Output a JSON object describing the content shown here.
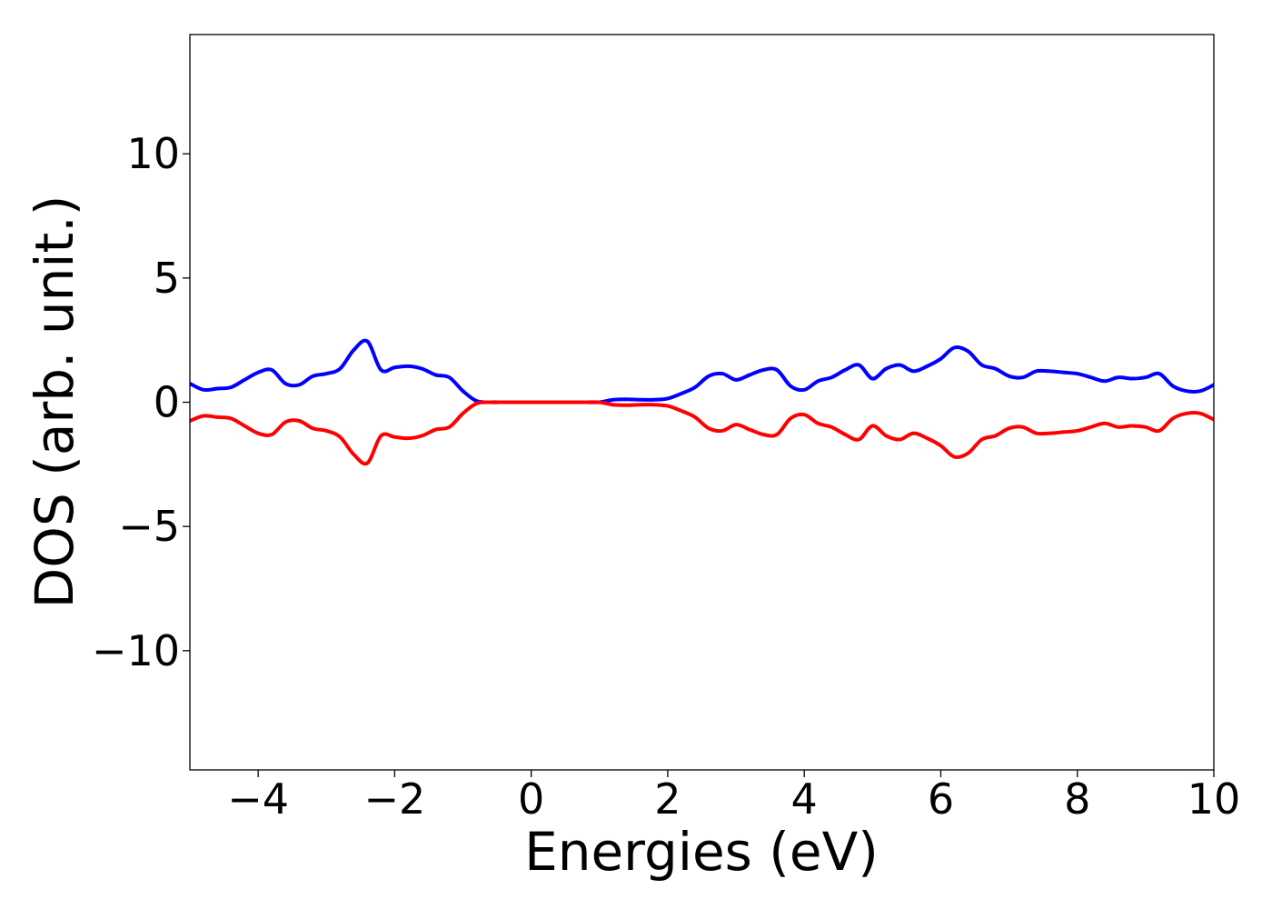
{
  "chart_data": {
    "type": "line",
    "title": "",
    "xlabel": "Energies (eV)",
    "ylabel": "DOS (arb. unit.)",
    "xlim": [
      -5,
      10
    ],
    "ylim": [
      -14.8,
      14.8
    ],
    "xticks": [
      -4,
      -2,
      0,
      2,
      4,
      6,
      8,
      10
    ],
    "xtick_labels": [
      "−4",
      "−2",
      "0",
      "2",
      "4",
      "6",
      "8",
      "10"
    ],
    "yticks": [
      -10,
      -5,
      0,
      5,
      10
    ],
    "ytick_labels": [
      "−10",
      "−5",
      "0",
      "5",
      "10"
    ],
    "grid": false,
    "legend": "none",
    "series": [
      {
        "color": "#0000ff",
        "x": [
          -5.0,
          -4.8,
          -4.6,
          -4.4,
          -4.2,
          -4.0,
          -3.8,
          -3.6,
          -3.4,
          -3.2,
          -3.0,
          -2.8,
          -2.6,
          -2.4,
          -2.2,
          -2.0,
          -1.8,
          -1.6,
          -1.4,
          -1.2,
          -1.0,
          -0.8,
          -0.6,
          -0.4,
          -0.2,
          0.0,
          0.2,
          0.4,
          0.6,
          0.8,
          1.0,
          1.2,
          1.4,
          1.6,
          1.8,
          2.0,
          2.2,
          2.4,
          2.6,
          2.8,
          3.0,
          3.2,
          3.4,
          3.6,
          3.8,
          4.0,
          4.2,
          4.4,
          4.6,
          4.8,
          5.0,
          5.2,
          5.4,
          5.6,
          5.8,
          6.0,
          6.2,
          6.4,
          6.6,
          6.8,
          7.0,
          7.2,
          7.4,
          7.6,
          7.8,
          8.0,
          8.2,
          8.4,
          8.6,
          8.8,
          9.0,
          9.2,
          9.4,
          9.6,
          9.8,
          10.0
        ],
        "y": [
          0.75,
          0.5,
          0.55,
          0.6,
          0.9,
          1.2,
          1.3,
          0.75,
          0.7,
          1.05,
          1.15,
          1.35,
          2.1,
          2.45,
          1.3,
          1.4,
          1.45,
          1.35,
          1.1,
          1.0,
          0.45,
          0.05,
          0.0,
          0.0,
          0.0,
          0.0,
          0.0,
          0.0,
          0.0,
          0.0,
          0.0,
          0.1,
          0.12,
          0.1,
          0.1,
          0.15,
          0.35,
          0.6,
          1.05,
          1.15,
          0.9,
          1.1,
          1.3,
          1.3,
          0.65,
          0.5,
          0.85,
          1.0,
          1.3,
          1.5,
          0.95,
          1.35,
          1.5,
          1.25,
          1.45,
          1.75,
          2.2,
          2.05,
          1.5,
          1.35,
          1.05,
          1.0,
          1.25,
          1.25,
          1.2,
          1.15,
          1.0,
          0.85,
          1.0,
          0.95,
          1.0,
          1.15,
          0.65,
          0.45,
          0.45,
          0.7
        ]
      },
      {
        "color": "#ff0000",
        "x": [
          -5.0,
          -4.8,
          -4.6,
          -4.4,
          -4.2,
          -4.0,
          -3.8,
          -3.6,
          -3.4,
          -3.2,
          -3.0,
          -2.8,
          -2.6,
          -2.4,
          -2.2,
          -2.0,
          -1.8,
          -1.6,
          -1.4,
          -1.2,
          -1.0,
          -0.8,
          -0.6,
          -0.4,
          -0.2,
          0.0,
          0.2,
          0.4,
          0.6,
          0.8,
          1.0,
          1.2,
          1.4,
          1.6,
          1.8,
          2.0,
          2.2,
          2.4,
          2.6,
          2.8,
          3.0,
          3.2,
          3.4,
          3.6,
          3.8,
          4.0,
          4.2,
          4.4,
          4.6,
          4.8,
          5.0,
          5.2,
          5.4,
          5.6,
          5.8,
          6.0,
          6.2,
          6.4,
          6.6,
          6.8,
          7.0,
          7.2,
          7.4,
          7.6,
          7.8,
          8.0,
          8.2,
          8.4,
          8.6,
          8.8,
          9.0,
          9.2,
          9.4,
          9.6,
          9.8,
          10.0
        ],
        "y": [
          -0.75,
          -0.55,
          -0.6,
          -0.65,
          -0.95,
          -1.25,
          -1.3,
          -0.8,
          -0.75,
          -1.05,
          -1.15,
          -1.4,
          -2.1,
          -2.45,
          -1.35,
          -1.4,
          -1.45,
          -1.35,
          -1.1,
          -1.0,
          -0.45,
          -0.05,
          0.0,
          0.0,
          0.0,
          0.0,
          0.0,
          0.0,
          0.0,
          0.0,
          0.0,
          -0.1,
          -0.12,
          -0.1,
          -0.1,
          -0.15,
          -0.35,
          -0.6,
          -1.05,
          -1.15,
          -0.9,
          -1.1,
          -1.3,
          -1.3,
          -0.65,
          -0.5,
          -0.85,
          -1.0,
          -1.3,
          -1.5,
          -0.95,
          -1.35,
          -1.5,
          -1.25,
          -1.45,
          -1.75,
          -2.2,
          -2.05,
          -1.5,
          -1.35,
          -1.05,
          -1.0,
          -1.25,
          -1.25,
          -1.2,
          -1.15,
          -1.0,
          -0.85,
          -1.0,
          -0.95,
          -1.0,
          -1.15,
          -0.65,
          -0.45,
          -0.45,
          -0.7
        ]
      }
    ]
  }
}
